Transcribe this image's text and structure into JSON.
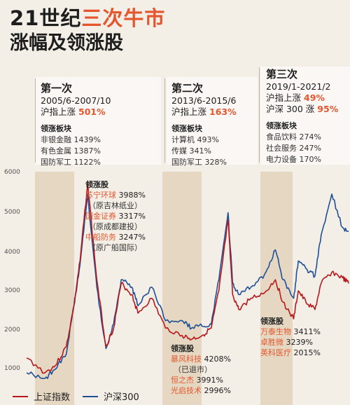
{
  "title": {
    "prefix": "21世纪",
    "accent": "三次牛市",
    "line2": "涨幅及领涨股"
  },
  "colors": {
    "sh": "#b5191c",
    "hs300": "#1f4f96",
    "accent": "#e4572e",
    "band": "#e2d2bb"
  },
  "panels": [
    {
      "name": "第一次",
      "period": "2005/6-2007/10",
      "gain_label": "沪指上涨",
      "gain": "501%",
      "sector_title": "领涨板块",
      "sectors": [
        "非银金融 1439%",
        "有色金属 1387%",
        "国防军工 1122%"
      ]
    },
    {
      "name": "第二次",
      "period": "2013/6-2015/6",
      "gain_label": "沪指上涨",
      "gain": "163%",
      "sector_title": "领涨板块",
      "sectors": [
        "计算机 493%",
        "传媒 341%",
        "国防军工 328%"
      ]
    },
    {
      "name": "第三次",
      "period": "2019/1-2021/2",
      "gain_label": "沪指上涨",
      "gain": "49%",
      "gain2_label": "沪深 300 涨",
      "gain2": "95%",
      "sector_title": "领涨板块",
      "sectors": [
        "食品饮料 274%",
        "社会服务 247%",
        "电力设备 170%"
      ]
    }
  ],
  "notes": [
    {
      "title": "领涨股",
      "stocks": [
        {
          "name": "苏宁环球",
          "value": "3988%",
          "sub": "（原吉林纸业）"
        },
        {
          "name": "国金证券",
          "value": "3317%",
          "sub": "（原成都建投）"
        },
        {
          "name": "中船防务",
          "value": "3247%",
          "sub": "（原广船国际）"
        }
      ]
    },
    {
      "title": "领涨股",
      "stocks": [
        {
          "name": "暴风科技",
          "value": "4208%",
          "sub": "（已退市）"
        },
        {
          "name": "恒之杰",
          "value": "3991%",
          "sub": ""
        },
        {
          "name": "光启技术",
          "value": "2996%",
          "sub": ""
        }
      ]
    },
    {
      "title": "领涨股",
      "stocks": [
        {
          "name": "万泰生物",
          "value": "3411%",
          "sub": ""
        },
        {
          "name": "卓胜微",
          "value": "3239%",
          "sub": ""
        },
        {
          "name": "英科医疗",
          "value": "2015%",
          "sub": ""
        }
      ]
    }
  ],
  "chart_data": {
    "type": "line",
    "ylim": [
      700,
      6400
    ],
    "yticks": [
      "6000",
      "5000",
      "4000",
      "3000",
      "2000",
      "1000"
    ],
    "x_range": [
      "2004-06",
      "2022-01"
    ],
    "bull_markets": [
      [
        "2005-06",
        "2007-10"
      ],
      [
        "2013-06",
        "2015-06"
      ],
      [
        "2019-01",
        "2021-02"
      ]
    ],
    "series": [
      {
        "name": "上证指数",
        "x": [
          "2004-06",
          "2005-06",
          "2006-01",
          "2006-08",
          "2007-01",
          "2007-05",
          "2007-10",
          "2008-04",
          "2008-10",
          "2009-03",
          "2009-08",
          "2010-03",
          "2010-07",
          "2011-04",
          "2012-01",
          "2012-12",
          "2013-06",
          "2014-01",
          "2014-07",
          "2014-12",
          "2015-06",
          "2015-09",
          "2016-01",
          "2016-09",
          "2017-06",
          "2018-01",
          "2018-06",
          "2019-01",
          "2019-04",
          "2019-09",
          "2020-03",
          "2020-07",
          "2021-02",
          "2021-09",
          "2022-01"
        ],
        "values": [
          1400,
          1000,
          1200,
          1700,
          2800,
          4000,
          6100,
          3500,
          1700,
          2200,
          3400,
          3100,
          2600,
          3000,
          2200,
          2000,
          1900,
          2000,
          2200,
          3200,
          5100,
          3100,
          2700,
          3000,
          3150,
          3500,
          2900,
          2450,
          3200,
          2900,
          2700,
          3400,
          3700,
          3550,
          3400
        ]
      },
      {
        "name": "沪深300",
        "x": [
          "2004-06",
          "2005-06",
          "2006-01",
          "2006-08",
          "2007-01",
          "2007-05",
          "2007-10",
          "2008-04",
          "2008-10",
          "2009-03",
          "2009-08",
          "2010-03",
          "2010-07",
          "2011-04",
          "2012-01",
          "2012-12",
          "2013-06",
          "2014-01",
          "2014-07",
          "2014-12",
          "2015-06",
          "2015-09",
          "2016-01",
          "2016-09",
          "2017-06",
          "2018-01",
          "2018-06",
          "2019-01",
          "2019-04",
          "2019-09",
          "2020-03",
          "2020-07",
          "2021-02",
          "2021-09",
          "2022-01"
        ],
        "values": [
          1000,
          850,
          1100,
          1500,
          2800,
          3900,
          5800,
          3300,
          1650,
          2300,
          3500,
          3300,
          2800,
          3300,
          2400,
          2400,
          2200,
          2250,
          2300,
          3500,
          5300,
          3400,
          3100,
          3300,
          3650,
          4300,
          3500,
          3000,
          4000,
          3800,
          3600,
          4700,
          5800,
          4900,
          4800
        ]
      }
    ]
  },
  "legend": {
    "sh": "上证指数",
    "hs300": "沪深300"
  }
}
